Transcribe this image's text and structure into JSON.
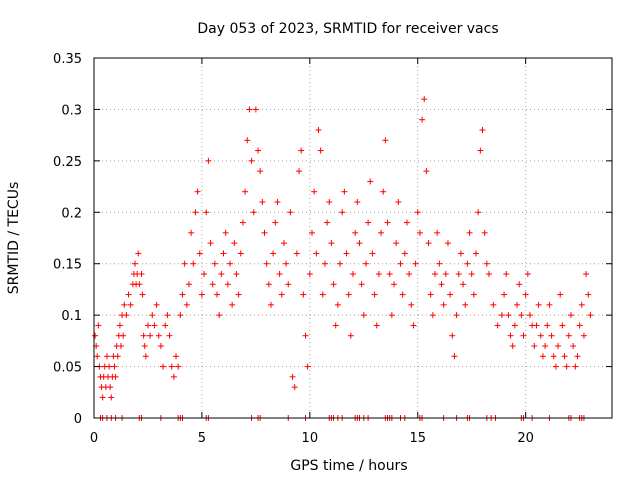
{
  "chart_data": {
    "type": "scatter",
    "title": "Day 053 of 2023, SRMTID for receiver vacs",
    "xlabel": "GPS time / hours",
    "ylabel": "SRMTID / TECUs",
    "xlim": [
      0,
      24
    ],
    "ylim": [
      0,
      0.35
    ],
    "x_ticks": [
      0,
      5,
      10,
      15,
      20
    ],
    "y_ticks": [
      0,
      0.05,
      0.1,
      0.15,
      0.2,
      0.25,
      0.3,
      0.35
    ],
    "x_tick_labels": [
      "0",
      "5",
      "10",
      "15",
      "20"
    ],
    "y_tick_labels": [
      "0",
      "0.05",
      "0.1",
      "0.15",
      "0.2",
      "0.25",
      "0.3",
      "0.35"
    ],
    "grid": true,
    "marker": "+",
    "series_color": "#ff0000",
    "series": [
      {
        "name": "SRMTID",
        "points": [
          [
            0.05,
            0.08
          ],
          [
            0.1,
            0.07
          ],
          [
            0.15,
            0.06
          ],
          [
            0.2,
            0.09
          ],
          [
            0.25,
            0.05
          ],
          [
            0.3,
            0.04
          ],
          [
            0.35,
            0.03
          ],
          [
            0.4,
            0.02
          ],
          [
            0.45,
            0.04
          ],
          [
            0.5,
            0.05
          ],
          [
            0.55,
            0.03
          ],
          [
            0.6,
            0.06
          ],
          [
            0.65,
            0.04
          ],
          [
            0.7,
            0.05
          ],
          [
            0.75,
            0.03
          ],
          [
            0.8,
            0.02
          ],
          [
            0.85,
            0.04
          ],
          [
            0.9,
            0.06
          ],
          [
            0.95,
            0.05
          ],
          [
            1.0,
            0.04
          ],
          [
            1.05,
            0.07
          ],
          [
            1.1,
            0.06
          ],
          [
            1.15,
            0.08
          ],
          [
            1.2,
            0.09
          ],
          [
            1.25,
            0.07
          ],
          [
            1.3,
            0.1
          ],
          [
            1.35,
            0.08
          ],
          [
            1.4,
            0.11
          ],
          [
            1.5,
            0.1
          ],
          [
            1.6,
            0.12
          ],
          [
            1.7,
            0.11
          ],
          [
            1.8,
            0.13
          ],
          [
            1.85,
            0.14
          ],
          [
            1.9,
            0.15
          ],
          [
            1.95,
            0.13
          ],
          [
            2.0,
            0.14
          ],
          [
            2.05,
            0.16
          ],
          [
            2.1,
            0.13
          ],
          [
            2.2,
            0.14
          ],
          [
            2.25,
            0.12
          ],
          [
            2.3,
            0.08
          ],
          [
            2.35,
            0.07
          ],
          [
            2.4,
            0.06
          ],
          [
            2.5,
            0.09
          ],
          [
            2.6,
            0.08
          ],
          [
            2.7,
            0.1
          ],
          [
            2.8,
            0.09
          ],
          [
            2.9,
            0.11
          ],
          [
            3.0,
            0.08
          ],
          [
            3.1,
            0.07
          ],
          [
            3.2,
            0.05
          ],
          [
            3.3,
            0.09
          ],
          [
            3.4,
            0.1
          ],
          [
            3.5,
            0.08
          ],
          [
            3.6,
            0.05
          ],
          [
            3.7,
            0.04
          ],
          [
            3.8,
            0.06
          ],
          [
            3.9,
            0.05
          ],
          [
            4.0,
            0.1
          ],
          [
            4.1,
            0.12
          ],
          [
            4.2,
            0.15
          ],
          [
            4.3,
            0.11
          ],
          [
            4.4,
            0.13
          ],
          [
            4.5,
            0.18
          ],
          [
            4.6,
            0.15
          ],
          [
            4.7,
            0.2
          ],
          [
            4.8,
            0.22
          ],
          [
            4.9,
            0.16
          ],
          [
            5.0,
            0.12
          ],
          [
            5.1,
            0.14
          ],
          [
            5.2,
            0.2
          ],
          [
            5.3,
            0.25
          ],
          [
            5.4,
            0.17
          ],
          [
            5.5,
            0.13
          ],
          [
            5.6,
            0.15
          ],
          [
            5.7,
            0.12
          ],
          [
            5.8,
            0.1
          ],
          [
            5.9,
            0.14
          ],
          [
            6.0,
            0.16
          ],
          [
            6.1,
            0.18
          ],
          [
            6.2,
            0.13
          ],
          [
            6.3,
            0.15
          ],
          [
            6.4,
            0.11
          ],
          [
            6.5,
            0.17
          ],
          [
            6.6,
            0.14
          ],
          [
            6.7,
            0.12
          ],
          [
            6.8,
            0.16
          ],
          [
            6.9,
            0.19
          ],
          [
            7.0,
            0.22
          ],
          [
            7.1,
            0.27
          ],
          [
            7.2,
            0.3
          ],
          [
            7.3,
            0.25
          ],
          [
            7.4,
            0.2
          ],
          [
            7.5,
            0.3
          ],
          [
            7.6,
            0.26
          ],
          [
            7.7,
            0.24
          ],
          [
            7.8,
            0.21
          ],
          [
            7.9,
            0.18
          ],
          [
            8.0,
            0.15
          ],
          [
            8.1,
            0.13
          ],
          [
            8.2,
            0.11
          ],
          [
            8.3,
            0.16
          ],
          [
            8.4,
            0.19
          ],
          [
            8.5,
            0.21
          ],
          [
            8.6,
            0.14
          ],
          [
            8.7,
            0.12
          ],
          [
            8.8,
            0.17
          ],
          [
            8.9,
            0.15
          ],
          [
            9.0,
            0.13
          ],
          [
            9.1,
            0.2
          ],
          [
            9.2,
            0.04
          ],
          [
            9.3,
            0.03
          ],
          [
            9.4,
            0.16
          ],
          [
            9.5,
            0.24
          ],
          [
            9.6,
            0.26
          ],
          [
            9.7,
            0.12
          ],
          [
            9.8,
            0.08
          ],
          [
            9.9,
            0.05
          ],
          [
            10.0,
            0.14
          ],
          [
            10.1,
            0.18
          ],
          [
            10.2,
            0.22
          ],
          [
            10.3,
            0.16
          ],
          [
            10.4,
            0.28
          ],
          [
            10.5,
            0.26
          ],
          [
            10.6,
            0.12
          ],
          [
            10.7,
            0.15
          ],
          [
            10.8,
            0.19
          ],
          [
            10.9,
            0.21
          ],
          [
            11.0,
            0.17
          ],
          [
            11.1,
            0.13
          ],
          [
            11.2,
            0.09
          ],
          [
            11.3,
            0.11
          ],
          [
            11.4,
            0.15
          ],
          [
            11.5,
            0.2
          ],
          [
            11.6,
            0.22
          ],
          [
            11.7,
            0.16
          ],
          [
            11.8,
            0.12
          ],
          [
            11.9,
            0.08
          ],
          [
            12.0,
            0.14
          ],
          [
            12.1,
            0.18
          ],
          [
            12.2,
            0.21
          ],
          [
            12.3,
            0.17
          ],
          [
            12.4,
            0.13
          ],
          [
            12.5,
            0.1
          ],
          [
            12.6,
            0.15
          ],
          [
            12.7,
            0.19
          ],
          [
            12.8,
            0.23
          ],
          [
            12.9,
            0.16
          ],
          [
            13.0,
            0.12
          ],
          [
            13.1,
            0.09
          ],
          [
            13.2,
            0.14
          ],
          [
            13.3,
            0.18
          ],
          [
            13.4,
            0.22
          ],
          [
            13.5,
            0.27
          ],
          [
            13.6,
            0.19
          ],
          [
            13.7,
            0.14
          ],
          [
            13.8,
            0.1
          ],
          [
            13.9,
            0.13
          ],
          [
            14.0,
            0.17
          ],
          [
            14.1,
            0.21
          ],
          [
            14.2,
            0.15
          ],
          [
            14.3,
            0.12
          ],
          [
            14.4,
            0.16
          ],
          [
            14.5,
            0.19
          ],
          [
            14.6,
            0.14
          ],
          [
            14.7,
            0.11
          ],
          [
            14.8,
            0.09
          ],
          [
            14.9,
            0.15
          ],
          [
            15.0,
            0.2
          ],
          [
            15.1,
            0.18
          ],
          [
            15.2,
            0.29
          ],
          [
            15.3,
            0.31
          ],
          [
            15.4,
            0.24
          ],
          [
            15.5,
            0.17
          ],
          [
            15.6,
            0.12
          ],
          [
            15.7,
            0.1
          ],
          [
            15.8,
            0.14
          ],
          [
            15.9,
            0.18
          ],
          [
            16.0,
            0.15
          ],
          [
            16.1,
            0.13
          ],
          [
            16.2,
            0.11
          ],
          [
            16.3,
            0.14
          ],
          [
            16.4,
            0.17
          ],
          [
            16.5,
            0.12
          ],
          [
            16.6,
            0.08
          ],
          [
            16.7,
            0.06
          ],
          [
            16.8,
            0.1
          ],
          [
            16.9,
            0.14
          ],
          [
            17.0,
            0.16
          ],
          [
            17.1,
            0.13
          ],
          [
            17.2,
            0.11
          ],
          [
            17.3,
            0.15
          ],
          [
            17.4,
            0.18
          ],
          [
            17.5,
            0.14
          ],
          [
            17.6,
            0.12
          ],
          [
            17.7,
            0.16
          ],
          [
            17.8,
            0.2
          ],
          [
            17.9,
            0.26
          ],
          [
            18.0,
            0.28
          ],
          [
            18.1,
            0.18
          ],
          [
            18.2,
            0.15
          ],
          [
            18.3,
            0.14
          ],
          [
            18.5,
            0.11
          ],
          [
            18.7,
            0.09
          ],
          [
            18.9,
            0.1
          ],
          [
            19.0,
            0.12
          ],
          [
            19.1,
            0.14
          ],
          [
            19.2,
            0.1
          ],
          [
            19.3,
            0.08
          ],
          [
            19.4,
            0.07
          ],
          [
            19.5,
            0.09
          ],
          [
            19.6,
            0.11
          ],
          [
            19.7,
            0.13
          ],
          [
            19.8,
            0.1
          ],
          [
            19.9,
            0.08
          ],
          [
            20.0,
            0.12
          ],
          [
            20.1,
            0.14
          ],
          [
            20.2,
            0.1
          ],
          [
            20.3,
            0.09
          ],
          [
            20.4,
            0.07
          ],
          [
            20.5,
            0.09
          ],
          [
            20.6,
            0.11
          ],
          [
            20.7,
            0.08
          ],
          [
            20.8,
            0.06
          ],
          [
            20.9,
            0.07
          ],
          [
            21.0,
            0.09
          ],
          [
            21.1,
            0.11
          ],
          [
            21.2,
            0.08
          ],
          [
            21.3,
            0.06
          ],
          [
            21.4,
            0.05
          ],
          [
            21.5,
            0.07
          ],
          [
            21.6,
            0.12
          ],
          [
            21.7,
            0.09
          ],
          [
            21.8,
            0.06
          ],
          [
            21.9,
            0.05
          ],
          [
            22.0,
            0.08
          ],
          [
            22.1,
            0.1
          ],
          [
            22.2,
            0.07
          ],
          [
            22.3,
            0.05
          ],
          [
            22.4,
            0.06
          ],
          [
            22.5,
            0.09
          ],
          [
            22.6,
            0.11
          ],
          [
            22.7,
            0.08
          ],
          [
            22.8,
            0.14
          ],
          [
            22.9,
            0.12
          ],
          [
            23.0,
            0.1
          ]
        ]
      }
    ],
    "zero_markers_x": [
      0.3,
      0.4,
      0.6,
      0.8,
      1.0,
      1.3,
      2.1,
      2.2,
      3.1,
      3.9,
      4.0,
      4.1,
      5.2,
      5.3,
      7.3,
      7.6,
      7.7,
      9.0,
      9.8,
      10.9,
      11.0,
      11.1,
      11.3,
      11.5,
      12.1,
      12.2,
      12.3,
      12.5,
      12.7,
      13.5,
      13.6,
      13.7,
      13.8,
      14.2,
      14.4,
      15.1,
      15.2,
      16.2,
      16.8,
      17.3,
      17.4,
      18.2,
      18.4,
      18.6,
      19.8,
      19.9,
      20.3,
      21.1,
      22.0,
      22.1,
      22.5,
      22.6,
      22.7
    ]
  }
}
